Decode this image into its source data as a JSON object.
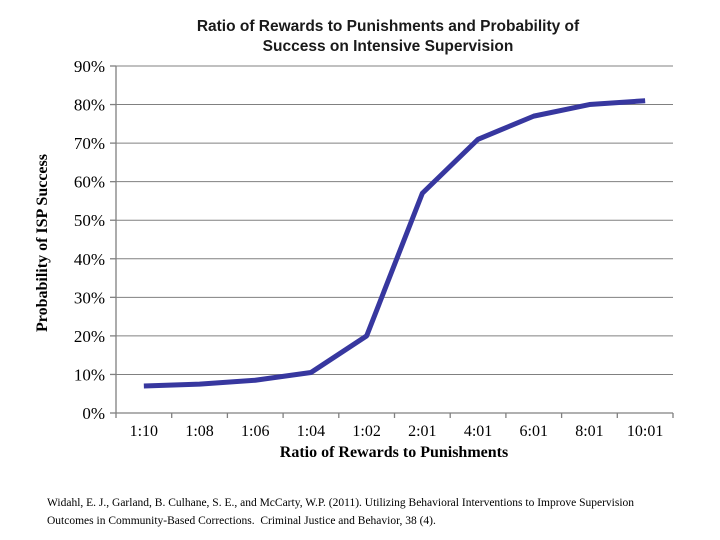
{
  "chart_data": {
    "type": "line",
    "title": "Ratio of Rewards to Punishments and Probability of Success on Intensive Supervision",
    "title_lines": [
      "Ratio of Rewards to Punishments and Probability of",
      "Success on Intensive Supervision"
    ],
    "xlabel": "Ratio of Rewards to Punishments",
    "ylabel": "Probability of ISP Success",
    "categories": [
      "1:10",
      "1:08",
      "1:06",
      "1:04",
      "1:02",
      "2:01",
      "4:01",
      "6:01",
      "8:01",
      "10:01"
    ],
    "series": [
      {
        "name": "Probability of ISP Success",
        "values": [
          7,
          7.5,
          8.5,
          10.5,
          20,
          57,
          71,
          77,
          80,
          81
        ]
      }
    ],
    "ylim": [
      0,
      90
    ],
    "ytick_step": 10,
    "ytick_labels": [
      "0%",
      "10%",
      "20%",
      "30%",
      "40%",
      "50%",
      "60%",
      "70%",
      "80%",
      "90%"
    ],
    "grid": "horizontal",
    "legend": "none",
    "line_color": "#37379f",
    "grid_color": "#808080"
  },
  "citation": {
    "line1": "Widahl, E. J., Garland, B. Culhane, S. E., and McCarty, W.P. (2011). Utilizing Behavioral Interventions to Improve Supervision",
    "line2": "Outcomes in Community-Based Corrections.  Criminal Justice and Behavior, 38 (4)."
  }
}
